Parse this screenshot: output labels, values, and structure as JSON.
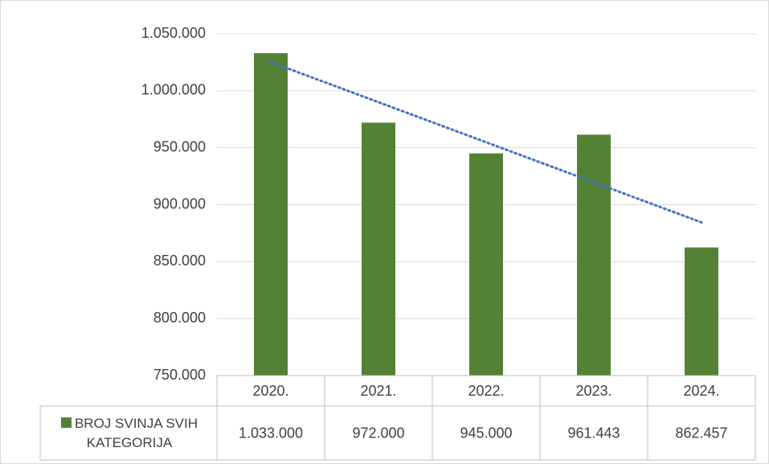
{
  "chart_data": {
    "type": "bar",
    "categories": [
      "2020.",
      "2021.",
      "2022.",
      "2023.",
      "2024."
    ],
    "series": [
      {
        "name": "BROJ SVINJA SVIH KATEGORIJA",
        "color": "#548235",
        "values": [
          1033000,
          972000,
          945000,
          961443,
          862457
        ],
        "value_labels": [
          "1.033.000",
          "972.000",
          "945.000",
          "961.443",
          "862.457"
        ]
      }
    ],
    "ylim": [
      750000,
      1050000
    ],
    "yticks": [
      {
        "value": 750000,
        "label": "750.000"
      },
      {
        "value": 800000,
        "label": "800.000"
      },
      {
        "value": 850000,
        "label": "850.000"
      },
      {
        "value": 900000,
        "label": "900.000"
      },
      {
        "value": 950000,
        "label": "950.000"
      },
      {
        "value": 1000000,
        "label": "1.000.000"
      },
      {
        "value": 1050000,
        "label": "1.050.000"
      }
    ],
    "grid": true,
    "trendline": {
      "type": "linear",
      "color": "#4472c4",
      "style": "dotted"
    },
    "data_table": true
  }
}
